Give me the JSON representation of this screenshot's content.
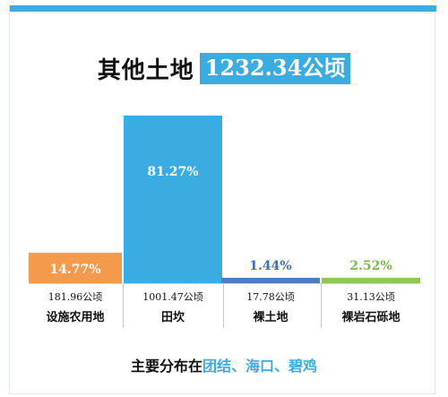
{
  "title": {
    "main": "其他土地",
    "highlight": "1232.34公顷"
  },
  "footer": {
    "prefix": "主要分布在",
    "places": "团结、海口、碧鸡"
  },
  "colors": {
    "accent": "#3aace2",
    "orange": "#f39a4d",
    "line_blue": "#4a7fc0",
    "line_green": "#8cc95a",
    "label_blue_pct": "#3f6fb5",
    "label_green_pct": "#7ab648"
  },
  "chart_data": {
    "type": "bar",
    "title": "其他土地 1232.34公顷",
    "categories": [
      "设施农用地",
      "田坎",
      "裸土地",
      "裸岩石砾地"
    ],
    "area_labels": [
      "181.96公顷",
      "1001.47公顷",
      "17.78公顷",
      "31.13公顷"
    ],
    "area_values": [
      181.96,
      1001.47,
      17.78,
      31.13
    ],
    "percent_labels": [
      "14.77%",
      "81.27%",
      "1.44%",
      "2.52%"
    ],
    "values": [
      14.77,
      81.27,
      1.44,
      2.52
    ],
    "unit": "%",
    "ylim": [
      0,
      81.27
    ],
    "bar_colors": [
      "#f39a4d",
      "#3aace2",
      "#4a7fc0",
      "#8cc95a"
    ],
    "grid": false,
    "legend": "none"
  }
}
